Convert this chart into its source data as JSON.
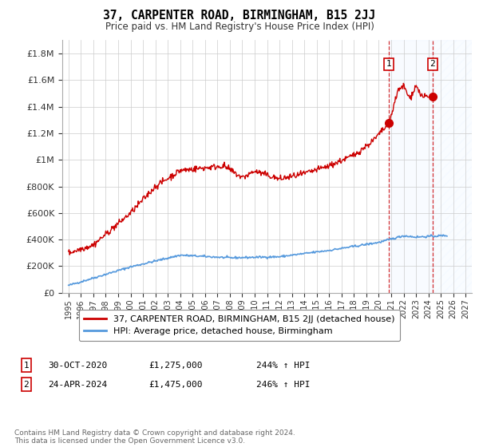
{
  "title": "37, CARPENTER ROAD, BIRMINGHAM, B15 2JJ",
  "subtitle": "Price paid vs. HM Land Registry's House Price Index (HPI)",
  "ylabel_ticks": [
    "£0",
    "£200K",
    "£400K",
    "£600K",
    "£800K",
    "£1M",
    "£1.2M",
    "£1.4M",
    "£1.6M",
    "£1.8M"
  ],
  "ylabel_values": [
    0,
    200000,
    400000,
    600000,
    800000,
    1000000,
    1200000,
    1400000,
    1600000,
    1800000
  ],
  "ylim": [
    0,
    1900000
  ],
  "xlim_start": 1994.5,
  "xlim_end": 2027.5,
  "hpi_color": "#5599dd",
  "price_color": "#cc0000",
  "annotation_color": "#cc0000",
  "shade_color": "#ddeeff",
  "point1_x": 2020.83,
  "point1_y": 1275000,
  "point1_label": "1",
  "point1_date": "30-OCT-2020",
  "point1_price": "£1,275,000",
  "point1_hpi": "244% ↑ HPI",
  "point2_x": 2024.33,
  "point2_y": 1475000,
  "point2_label": "2",
  "point2_date": "24-APR-2024",
  "point2_price": "£1,475,000",
  "point2_hpi": "246% ↑ HPI",
  "legend_line1": "37, CARPENTER ROAD, BIRMINGHAM, B15 2JJ (detached house)",
  "legend_line2": "HPI: Average price, detached house, Birmingham",
  "footer": "Contains HM Land Registry data © Crown copyright and database right 2024.\nThis data is licensed under the Open Government Licence v3.0.",
  "background_color": "#ffffff",
  "grid_color": "#cccccc"
}
